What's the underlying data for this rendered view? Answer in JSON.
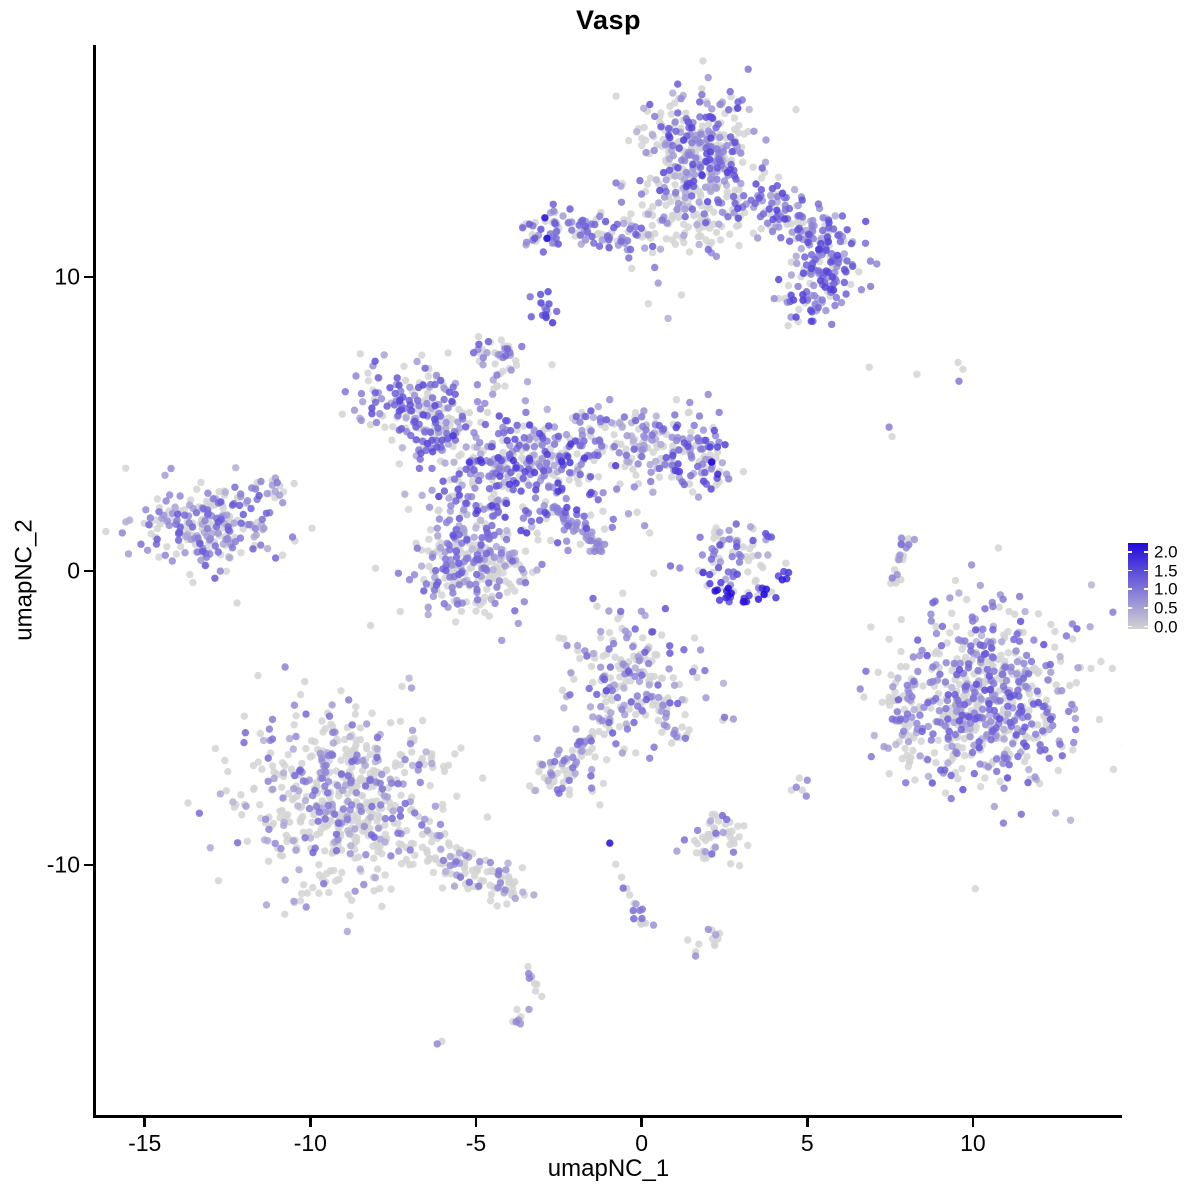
{
  "chart_data": {
    "type": "scatter",
    "title": "Vasp",
    "xlabel": "umapNC_1",
    "ylabel": "umapNC_2",
    "xlim": [
      -16.5,
      14.5
    ],
    "ylim": [
      -18.5,
      17.9
    ],
    "xticks": [
      {
        "value": -15,
        "label": "-15"
      },
      {
        "value": -10,
        "label": "-10"
      },
      {
        "value": -5,
        "label": "-5"
      },
      {
        "value": 0,
        "label": "0"
      },
      {
        "value": 5,
        "label": "5"
      },
      {
        "value": 10,
        "label": "10"
      }
    ],
    "yticks": [
      {
        "value": 10,
        "label": "10"
      },
      {
        "value": 0,
        "label": "0"
      },
      {
        "value": -10,
        "label": "-10"
      }
    ],
    "grid": false,
    "legend": {
      "position": "right",
      "min": 0,
      "max": 2,
      "tick_values": [
        2.0,
        1.5,
        1.0,
        0.5,
        0.0
      ],
      "tick_labels": [
        "2.0",
        "1.5",
        "1.0",
        "0.5",
        "0.0"
      ],
      "low_color": "#D3D3D3",
      "high_color": "#2209DD"
    },
    "style": {
      "point_radius": 3.7,
      "point_opacity": 0.85,
      "axis_color": "#000000",
      "background": "#FFFFFF"
    },
    "clusters": [
      {
        "name": "top-head",
        "n": 310,
        "gauss": {
          "cx": 1.66,
          "cy": 14.32,
          "sx": 0.85,
          "sy": 0.95
        },
        "expr": {
          "p0": 0.38,
          "lo": 0.3,
          "hi": 1.5
        }
      },
      {
        "name": "top-fan",
        "n": 110,
        "gauss": {
          "cx": 1.5,
          "cy": 12.2,
          "sx": 0.95,
          "sy": 0.75
        },
        "expr": {
          "p0": 0.52,
          "lo": 0.3,
          "hi": 1.2
        }
      },
      {
        "name": "top-right-arm",
        "n": 270,
        "path": {
          "pts": [
            [
              3.1,
              12.69
            ],
            [
              4.1,
              12.21
            ],
            [
              5.0,
              11.73
            ],
            [
              5.66,
              11.19
            ],
            [
              5.78,
              10.41
            ],
            [
              5.42,
              9.56
            ],
            [
              4.85,
              8.95
            ]
          ],
          "jitter": 0.5
        },
        "expr": {
          "p0": 0.22,
          "lo": 0.4,
          "hi": 1.5
        }
      },
      {
        "name": "top-left-arm",
        "n": 115,
        "path": {
          "pts": [
            [
              -3.37,
              11.6
            ],
            [
              -2.47,
              11.77
            ],
            [
              -1.57,
              11.53
            ],
            [
              -0.66,
              11.26
            ],
            [
              0.18,
              11.16
            ]
          ],
          "jitter": 0.33
        },
        "expr": {
          "p0": 0.3,
          "lo": 0.4,
          "hi": 1.3
        }
      },
      {
        "name": "top-left-arm-navy",
        "points": [
          [
            -2.92,
            12.02,
            2.0
          ],
          [
            -2.86,
            11.32,
            2.0
          ]
        ]
      },
      {
        "name": "blob-small-upper-center",
        "n": 16,
        "gauss": {
          "cx": -2.92,
          "cy": 8.78,
          "sx": 0.2,
          "sy": 0.3
        },
        "expr": {
          "p0": 0.12,
          "lo": 0.8,
          "hi": 1.6
        }
      },
      {
        "name": "blob-small-upper-left",
        "n": 15,
        "gauss": {
          "cx": -4.67,
          "cy": 7.31,
          "sx": 0.28,
          "sy": 0.3
        },
        "expr": {
          "p0": 0.3,
          "lo": 0.5,
          "hi": 1.3
        }
      },
      {
        "name": "dot-upper-left",
        "points": [
          [
            -4.37,
            6.67,
            0.9
          ]
        ]
      },
      {
        "name": "central-nw-arm",
        "n": 130,
        "gauss": {
          "cx": -7.0,
          "cy": 5.7,
          "sx": 0.85,
          "sy": 0.65
        },
        "expr": {
          "p0": 0.28,
          "lo": 0.35,
          "hi": 1.4
        }
      },
      {
        "name": "central-nw-arm2",
        "n": 75,
        "gauss": {
          "cx": -5.9,
          "cy": 4.75,
          "sx": 0.6,
          "sy": 0.5
        },
        "expr": {
          "p0": 0.35,
          "lo": 0.35,
          "hi": 1.3
        }
      },
      {
        "name": "central-neck",
        "n": 26,
        "path": {
          "pts": [
            [
              -4.37,
              6.16
            ],
            [
              -4.0,
              7.0
            ],
            [
              -4.13,
              7.7
            ]
          ],
          "jitter": 0.22
        },
        "expr": {
          "p0": 0.45,
          "lo": 0.4,
          "hi": 1.1
        }
      },
      {
        "name": "central-core",
        "n": 340,
        "gauss": {
          "cx": -3.67,
          "cy": 3.5,
          "sx": 1.3,
          "sy": 1.05
        },
        "expr": {
          "p0": 0.28,
          "lo": 0.35,
          "hi": 1.6
        }
      },
      {
        "name": "central-east-band",
        "n": 115,
        "path": {
          "pts": [
            [
              -1.87,
              4.29
            ],
            [
              -0.81,
              4.8
            ],
            [
              0.24,
              4.46
            ],
            [
              0.84,
              3.95
            ]
          ],
          "jitter": 0.55
        },
        "expr": {
          "p0": 0.45,
          "lo": 0.3,
          "hi": 1.2
        }
      },
      {
        "name": "central-east-blob",
        "n": 95,
        "gauss": {
          "cx": 1.66,
          "cy": 4.0,
          "sx": 0.55,
          "sy": 0.7
        },
        "expr": {
          "p0": 0.3,
          "lo": 0.4,
          "hi": 1.5
        }
      },
      {
        "name": "central-east-blob-navy",
        "points": [
          [
            2.11,
            3.71,
            2.0
          ],
          [
            2.3,
            3.3,
            1.7
          ]
        ]
      },
      {
        "name": "central-sw-blob",
        "n": 270,
        "gauss": {
          "cx": -5.18,
          "cy": 0.4,
          "sx": 1.05,
          "sy": 0.9
        },
        "expr": {
          "p0": 0.45,
          "lo": 0.3,
          "hi": 1.2
        }
      },
      {
        "name": "central-comet-streak",
        "n": 48,
        "path": {
          "pts": [
            [
              -2.71,
              2.24
            ],
            [
              -2.32,
              1.9
            ],
            [
              -1.93,
              1.5
            ],
            [
              -1.51,
              1.05
            ],
            [
              -1.17,
              0.71
            ]
          ],
          "jitter": 0.11
        },
        "expr": {
          "p0": 0.08,
          "lo": 0.5,
          "hi": 0.85
        }
      },
      {
        "name": "central-scatter-east",
        "n": 22,
        "gauss": {
          "cx": -1.0,
          "cy": 2.6,
          "sx": 0.9,
          "sy": 0.85
        },
        "expr": {
          "p0": 0.5,
          "lo": 0.3,
          "hi": 1.0
        }
      },
      {
        "name": "left-cluster",
        "n": 235,
        "gauss": {
          "cx": -13.1,
          "cy": 1.5,
          "sx": 1.05,
          "sy": 0.72
        },
        "expr": {
          "p0": 0.42,
          "lo": 0.35,
          "hi": 1.25
        }
      },
      {
        "name": "left-cluster-tail",
        "n": 16,
        "gauss": {
          "cx": -11.05,
          "cy": 2.69,
          "sx": 0.45,
          "sy": 0.3
        },
        "expr": {
          "p0": 0.5,
          "lo": 0.3,
          "hi": 1.0
        }
      },
      {
        "name": "bluearc-upper",
        "n": 60,
        "gauss": {
          "cx": 2.86,
          "cy": 0.61,
          "sx": 0.72,
          "sy": 0.55
        },
        "expr": {
          "p0": 0.35,
          "lo": 0.4,
          "hi": 1.4
        }
      },
      {
        "name": "bluearc-arc",
        "n": 32,
        "path": {
          "pts": [
            [
              1.75,
              0.14
            ],
            [
              2.11,
              -0.41
            ],
            [
              2.56,
              -0.82
            ],
            [
              3.07,
              -1.02
            ],
            [
              3.61,
              -0.85
            ],
            [
              4.1,
              -0.48
            ],
            [
              4.4,
              -0.07
            ]
          ],
          "jitter": 0.14
        },
        "expr": {
          "p0": 0.06,
          "lo": 1.3,
          "hi": 2.0
        }
      },
      {
        "name": "bluearc-gray",
        "n": 14,
        "path": {
          "pts": [
            [
              1.9,
              0.0
            ],
            [
              2.6,
              -0.6
            ],
            [
              3.3,
              -0.9
            ],
            [
              4.1,
              -0.3
            ]
          ],
          "jitter": 0.25
        },
        "expr": {
          "p0": 0.8,
          "lo": 0.4,
          "hi": 0.9
        }
      },
      {
        "name": "crescent-right",
        "n": 24,
        "path": {
          "pts": [
            [
              8.25,
              1.26
            ],
            [
              7.95,
              0.88
            ],
            [
              7.74,
              0.44
            ],
            [
              7.65,
              -0.03
            ],
            [
              7.71,
              -0.37
            ]
          ],
          "jitter": 0.12
        },
        "expr": {
          "p0": 0.72,
          "lo": 0.5,
          "hi": 1.0
        }
      },
      {
        "name": "sparse-right-top",
        "points": [
          [
            6.87,
            6.94,
            0
          ],
          [
            8.31,
            6.7,
            0
          ],
          [
            9.55,
            7.1,
            0
          ],
          [
            9.7,
            6.87,
            0
          ],
          [
            9.58,
            6.46,
            0.9
          ],
          [
            7.47,
            4.9,
            0.85
          ],
          [
            7.56,
            4.58,
            0
          ]
        ]
      },
      {
        "name": "right-cluster",
        "n": 640,
        "gauss": {
          "cx": 10.33,
          "cy": -4.5,
          "sx": 1.35,
          "sy": 1.5
        },
        "expr": {
          "p0": 0.44,
          "lo": 0.3,
          "hi": 1.35
        }
      },
      {
        "name": "right-cluster-appendage",
        "n": 32,
        "gauss": {
          "cx": 7.85,
          "cy": -4.9,
          "sx": 0.3,
          "sy": 0.75
        },
        "expr": {
          "p0": 0.6,
          "lo": 0.3,
          "hi": 1.0
        }
      },
      {
        "name": "bottomleft-cluster",
        "n": 580,
        "gauss": {
          "cx": -8.95,
          "cy": -7.7,
          "sx": 1.55,
          "sy": 1.5
        },
        "expr": {
          "p0": 0.66,
          "lo": 0.3,
          "hi": 1.1
        }
      },
      {
        "name": "bottomleft-tail",
        "n": 95,
        "path": {
          "pts": [
            [
              -6.69,
              -9.32
            ],
            [
              -5.63,
              -9.9
            ],
            [
              -4.58,
              -10.44
            ],
            [
              -3.83,
              -10.78
            ]
          ],
          "jitter": 0.33
        },
        "expr": {
          "p0": 0.76,
          "lo": 0.3,
          "hi": 1.0
        }
      },
      {
        "name": "centerbottom-cluster",
        "n": 195,
        "gauss": {
          "cx": -0.36,
          "cy": -3.64,
          "sx": 1.0,
          "sy": 1.1
        },
        "expr": {
          "p0": 0.5,
          "lo": 0.35,
          "hi": 1.3
        }
      },
      {
        "name": "centerbottom-leg-left",
        "n": 26,
        "path": {
          "pts": [
            [
              -1.11,
              -4.9
            ],
            [
              -1.63,
              -5.75
            ],
            [
              -1.96,
              -6.16
            ]
          ],
          "jitter": 0.17
        },
        "expr": {
          "p0": 0.5,
          "lo": 0.4,
          "hi": 1.1
        }
      },
      {
        "name": "centerbottom-leg-right",
        "n": 20,
        "path": {
          "pts": [
            [
              0.39,
              -4.39
            ],
            [
              0.78,
              -5.07
            ],
            [
              1.08,
              -5.75
            ]
          ],
          "jitter": 0.15
        },
        "expr": {
          "p0": 0.7,
          "lo": 0.4,
          "hi": 1.0
        }
      },
      {
        "name": "centerbottom-sub",
        "n": 52,
        "gauss": {
          "cx": -2.47,
          "cy": -6.87,
          "sx": 0.55,
          "sy": 0.4
        },
        "expr": {
          "p0": 0.5,
          "lo": 0.35,
          "hi": 1.1
        }
      },
      {
        "name": "centerbottom-below-dots",
        "points": [
          [
            -1.51,
            -7.38,
            0.9
          ],
          [
            -1.26,
            -7.95,
            0
          ]
        ]
      },
      {
        "name": "pair-midright",
        "points": [
          [
            2.5,
            -4.97,
            1.0
          ],
          [
            2.77,
            -5.03,
            0.6
          ]
        ]
      },
      {
        "name": "small-cluster-midright",
        "n": 50,
        "gauss": {
          "cx": 2.26,
          "cy": -9.08,
          "sx": 0.5,
          "sy": 0.42
        },
        "expr": {
          "p0": 0.72,
          "lo": 0.4,
          "hi": 1.1
        }
      },
      {
        "name": "chain-navy-dot",
        "points": [
          [
            -0.96,
            -9.25,
            2.0
          ],
          [
            -0.78,
            -9.97,
            0
          ]
        ]
      },
      {
        "name": "chain-bottomcenter",
        "n": 17,
        "path": {
          "pts": [
            [
              -0.63,
              -10.37
            ],
            [
              -0.42,
              -10.85
            ],
            [
              -0.24,
              -11.29
            ],
            [
              -0.06,
              -11.73
            ],
            [
              0.03,
              -12.04
            ]
          ],
          "jitter": 0.12
        },
        "expr": {
          "p0": 0.35,
          "lo": 0.5,
          "hi": 1.1
        }
      },
      {
        "name": "blob-bottom-small",
        "n": 12,
        "gauss": {
          "cx": 2.11,
          "cy": -12.55,
          "sx": 0.35,
          "sy": 0.25
        },
        "expr": {
          "p0": 0.8,
          "lo": 0.5,
          "hi": 0.9
        }
      },
      {
        "name": "trail-bottom",
        "n": 17,
        "path": {
          "pts": [
            [
              -3.46,
              -13.47
            ],
            [
              -3.25,
              -14.01
            ],
            [
              -3.31,
              -14.56
            ],
            [
              -3.61,
              -15.0
            ],
            [
              -3.8,
              -15.44
            ]
          ],
          "jitter": 0.13
        },
        "expr": {
          "p0": 0.55,
          "lo": 0.4,
          "hi": 0.9
        }
      },
      {
        "name": "dot-pair-bottomleft",
        "points": [
          [
            -6.03,
            -16.0,
            0
          ],
          [
            -6.17,
            -16.08,
            0.75
          ]
        ]
      },
      {
        "name": "trio-right",
        "points": [
          [
            4.76,
            -7.04,
            0
          ],
          [
            4.52,
            -7.45,
            0
          ],
          [
            4.85,
            -7.45,
            0
          ],
          [
            4.67,
            -7.35,
            0.8
          ],
          [
            5.0,
            -7.11,
            0.75
          ],
          [
            4.97,
            -7.65,
            0.8
          ]
        ]
      },
      {
        "name": "sparse-below-top",
        "points": [
          [
            0.5,
            9.8,
            0.6
          ],
          [
            0.2,
            9.1,
            0
          ],
          [
            0.8,
            8.6,
            0.4
          ],
          [
            -0.3,
            10.3,
            0
          ],
          [
            1.2,
            9.4,
            0
          ]
        ]
      }
    ]
  }
}
